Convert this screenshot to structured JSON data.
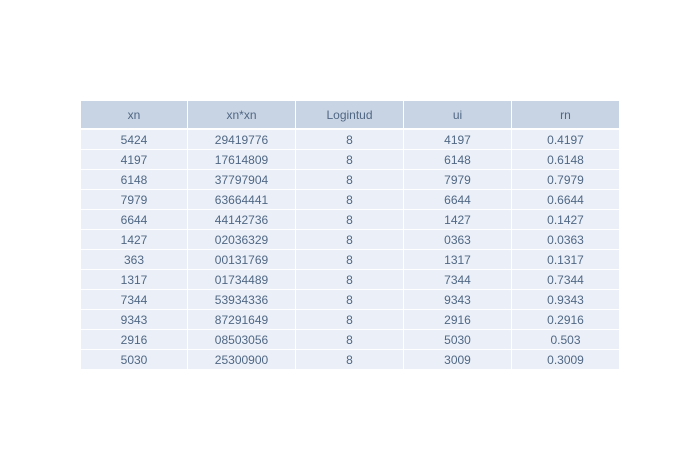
{
  "chart_data": {
    "type": "table",
    "columns": [
      "xn",
      "xn*xn",
      "Logintud",
      "ui",
      "rn"
    ],
    "rows": [
      [
        "5424",
        "29419776",
        "8",
        "4197",
        "0.4197"
      ],
      [
        "4197",
        "17614809",
        "8",
        "6148",
        "0.6148"
      ],
      [
        "6148",
        "37797904",
        "8",
        "7979",
        "0.7979"
      ],
      [
        "7979",
        "63664441",
        "8",
        "6644",
        "0.6644"
      ],
      [
        "6644",
        "44142736",
        "8",
        "1427",
        "0.1427"
      ],
      [
        "1427",
        "02036329",
        "8",
        "0363",
        "0.0363"
      ],
      [
        "363",
        "00131769",
        "8",
        "1317",
        "0.1317"
      ],
      [
        "1317",
        "01734489",
        "8",
        "7344",
        "0.7344"
      ],
      [
        "7344",
        "53934336",
        "8",
        "9343",
        "0.9343"
      ],
      [
        "9343",
        "87291649",
        "8",
        "2916",
        "0.2916"
      ],
      [
        "2916",
        "08503056",
        "8",
        "5030",
        "0.503"
      ],
      [
        "5030",
        "25300900",
        "8",
        "3009",
        "0.3009"
      ]
    ],
    "colors": {
      "header_fill": "#c8d4e3",
      "cell_fill": "#ebf0f8",
      "text": "#506784",
      "line": "#ffffff"
    }
  }
}
